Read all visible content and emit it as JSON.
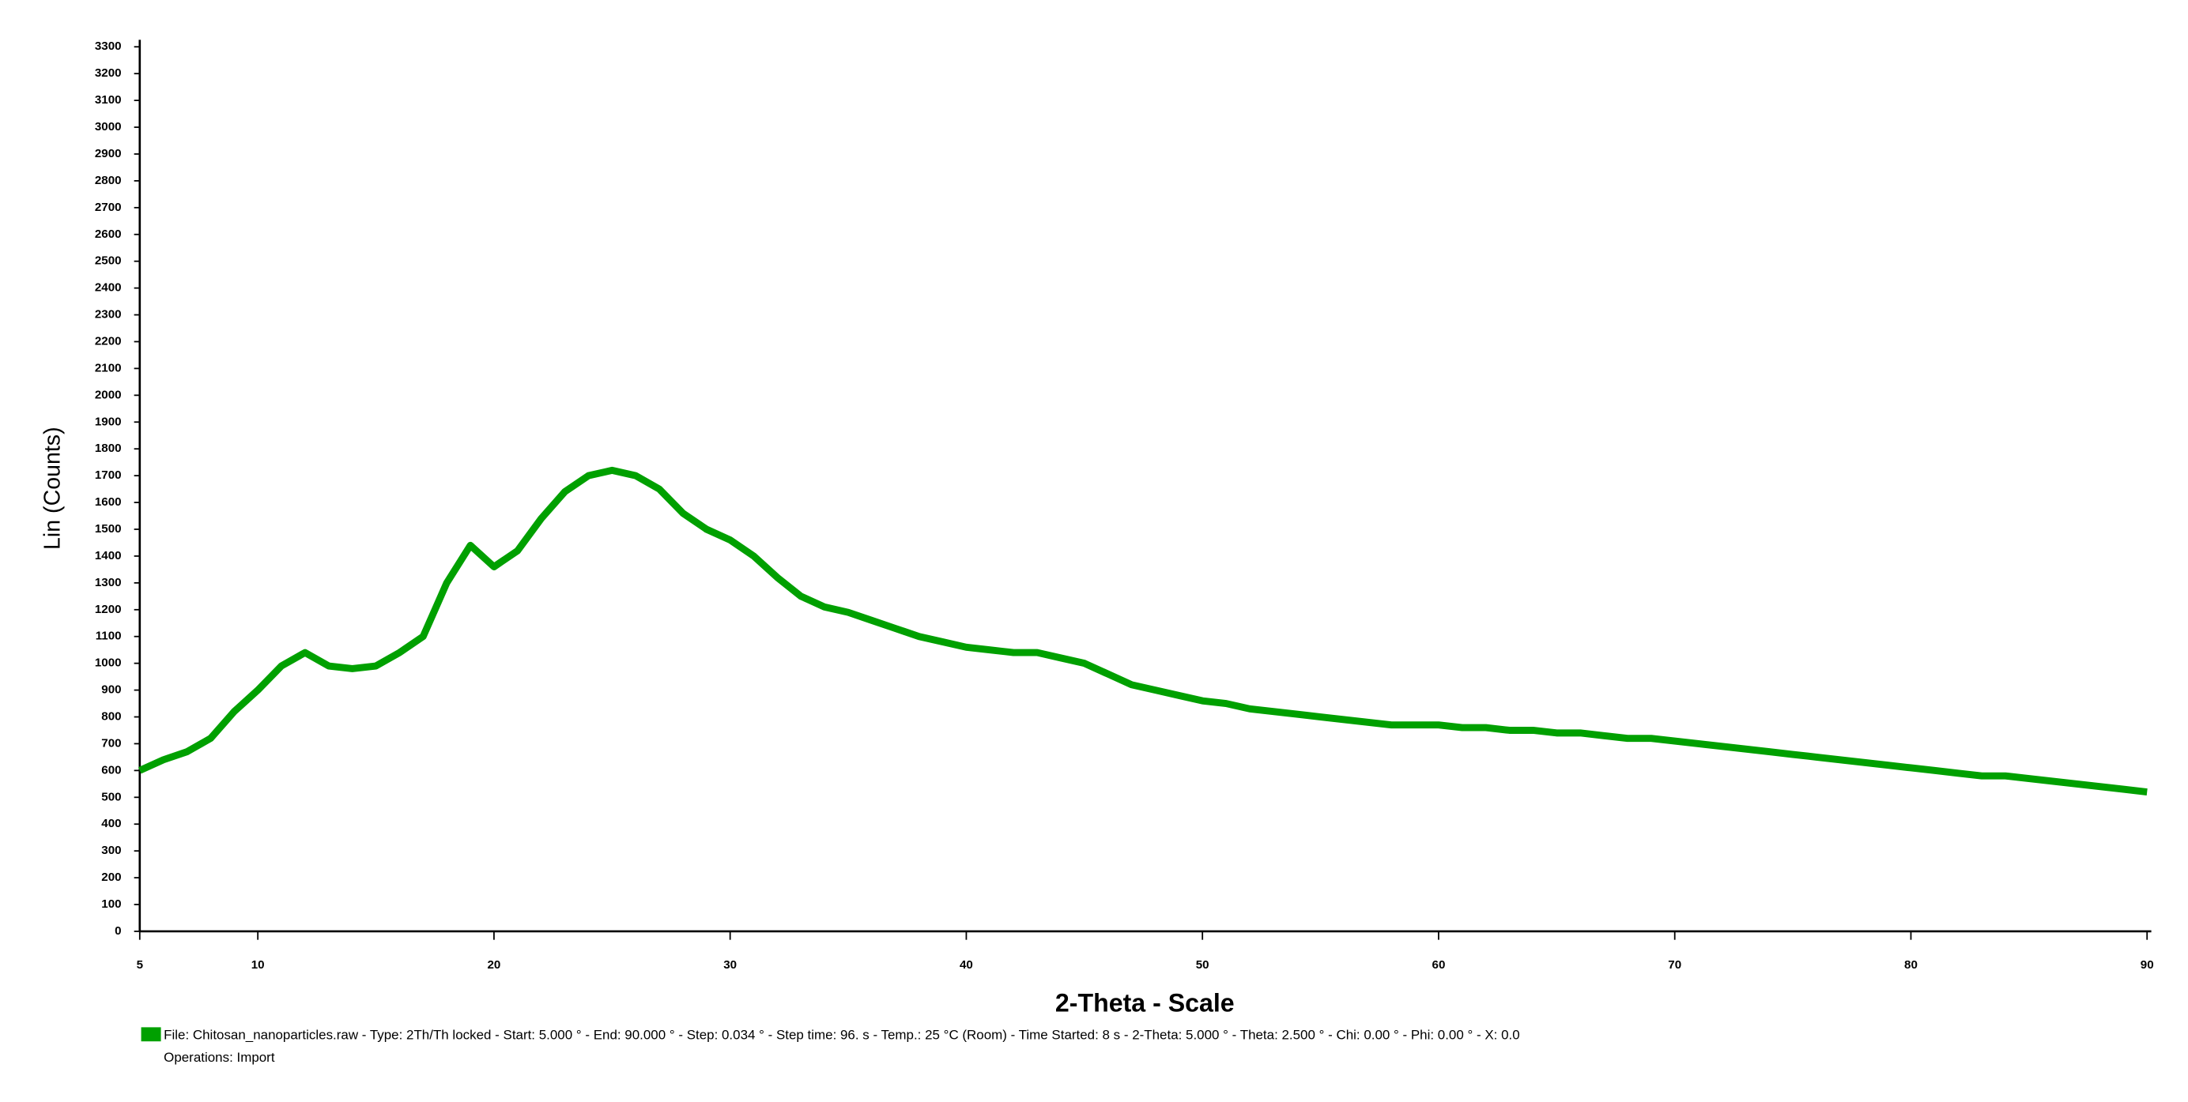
{
  "chart_data": {
    "type": "line",
    "y_label": "Lin (Counts)",
    "x_label": "2-Theta - Scale",
    "annotations": [
      "File: Chitosan_nanoparticles.raw - Type: 2Th/Th locked - Start: 5.000 ° - End: 90.000 ° - Step: 0.034 ° - Step time: 96. s - Temp.: 25 °C (Room) - Time Started: 8 s - 2-Theta: 5.000 ° - Theta: 2.500 ° - Chi: 0.00 ° - Phi: 0.00 ° - X: 0.0",
      "Operations: Import"
    ],
    "x": [
      5,
      6,
      7,
      8,
      9,
      10,
      11,
      12,
      13,
      14,
      15,
      16,
      17,
      18,
      19,
      20,
      21,
      22,
      23,
      24,
      25,
      26,
      27,
      28,
      29,
      30,
      31,
      32,
      33,
      34,
      35,
      36,
      37,
      38,
      39,
      40,
      41,
      42,
      43,
      44,
      45,
      46,
      47,
      48,
      49,
      50,
      51,
      52,
      53,
      54,
      55,
      56,
      57,
      58,
      59,
      60,
      61,
      62,
      63,
      64,
      65,
      66,
      67,
      68,
      69,
      70,
      71,
      72,
      73,
      74,
      75,
      76,
      77,
      78,
      79,
      80,
      81,
      82,
      83,
      84,
      85,
      86,
      87,
      88,
      89,
      90
    ],
    "series": [
      {
        "color": "#00a000",
        "values": [
          600,
          640,
          670,
          720,
          820,
          900,
          990,
          1040,
          990,
          980,
          990,
          1040,
          1100,
          1300,
          1440,
          1360,
          1420,
          1540,
          1640,
          1700,
          1720,
          1700,
          1650,
          1560,
          1500,
          1460,
          1400,
          1320,
          1250,
          1210,
          1190,
          1160,
          1130,
          1100,
          1080,
          1060,
          1050,
          1040,
          1040,
          1020,
          1000,
          960,
          920,
          900,
          880,
          860,
          850,
          830,
          820,
          810,
          800,
          790,
          780,
          770,
          770,
          770,
          760,
          760,
          750,
          750,
          740,
          740,
          730,
          720,
          720,
          710,
          700,
          690,
          680,
          670,
          660,
          650,
          640,
          630,
          620,
          610,
          600,
          590,
          580,
          580,
          570,
          560,
          550,
          540,
          530,
          520
        ]
      }
    ],
    "xlim": [
      5,
      90
    ],
    "ylim": [
      0,
      3300
    ],
    "xticks": [
      5,
      10,
      20,
      30,
      40,
      50,
      60,
      70,
      80,
      90
    ],
    "yticks": [
      0,
      100,
      200,
      300,
      400,
      500,
      600,
      700,
      800,
      900,
      1000,
      1100,
      1200,
      1300,
      1400,
      1500,
      1600,
      1700,
      1800,
      1900,
      2000,
      2100,
      2200,
      2300,
      2400,
      2500,
      2600,
      2700,
      2800,
      2900,
      3000,
      3100,
      3200,
      3300
    ]
  }
}
